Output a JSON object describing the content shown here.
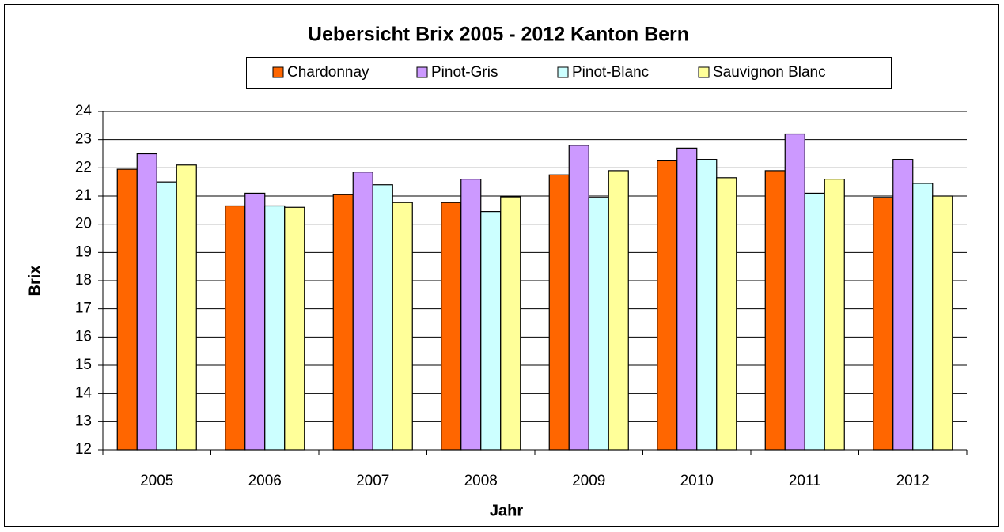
{
  "chart_data": {
    "type": "bar",
    "title": "Uebersicht Brix 2005 - 2012  Kanton Bern",
    "x_label": "Jahr",
    "y_label": "Brix",
    "categories": [
      "2005",
      "2006",
      "2007",
      "2008",
      "2009",
      "2010",
      "2011",
      "2012"
    ],
    "series": [
      {
        "name": "Chardonnay",
        "color": "#ff6600",
        "values": [
          21.95,
          20.65,
          21.05,
          20.77,
          21.75,
          22.25,
          21.9,
          20.95
        ]
      },
      {
        "name": "Pinot-Gris",
        "color": "#cc99ff",
        "values": [
          22.5,
          21.1,
          21.85,
          21.6,
          22.8,
          22.7,
          23.2,
          22.3
        ]
      },
      {
        "name": "Pinot-Blanc",
        "color": "#ccffff",
        "values": [
          21.5,
          20.65,
          21.4,
          20.45,
          20.95,
          22.3,
          21.1,
          21.45
        ]
      },
      {
        "name": "Sauvignon Blanc",
        "color": "#ffff99",
        "values": [
          22.1,
          20.6,
          20.77,
          20.97,
          21.9,
          21.65,
          21.6,
          21.0
        ]
      }
    ],
    "ylim": [
      12,
      24
    ],
    "yticks": [
      12,
      13,
      14,
      15,
      16,
      17,
      18,
      19,
      20,
      21,
      22,
      23,
      24
    ],
    "grid": true,
    "legend": "top"
  }
}
